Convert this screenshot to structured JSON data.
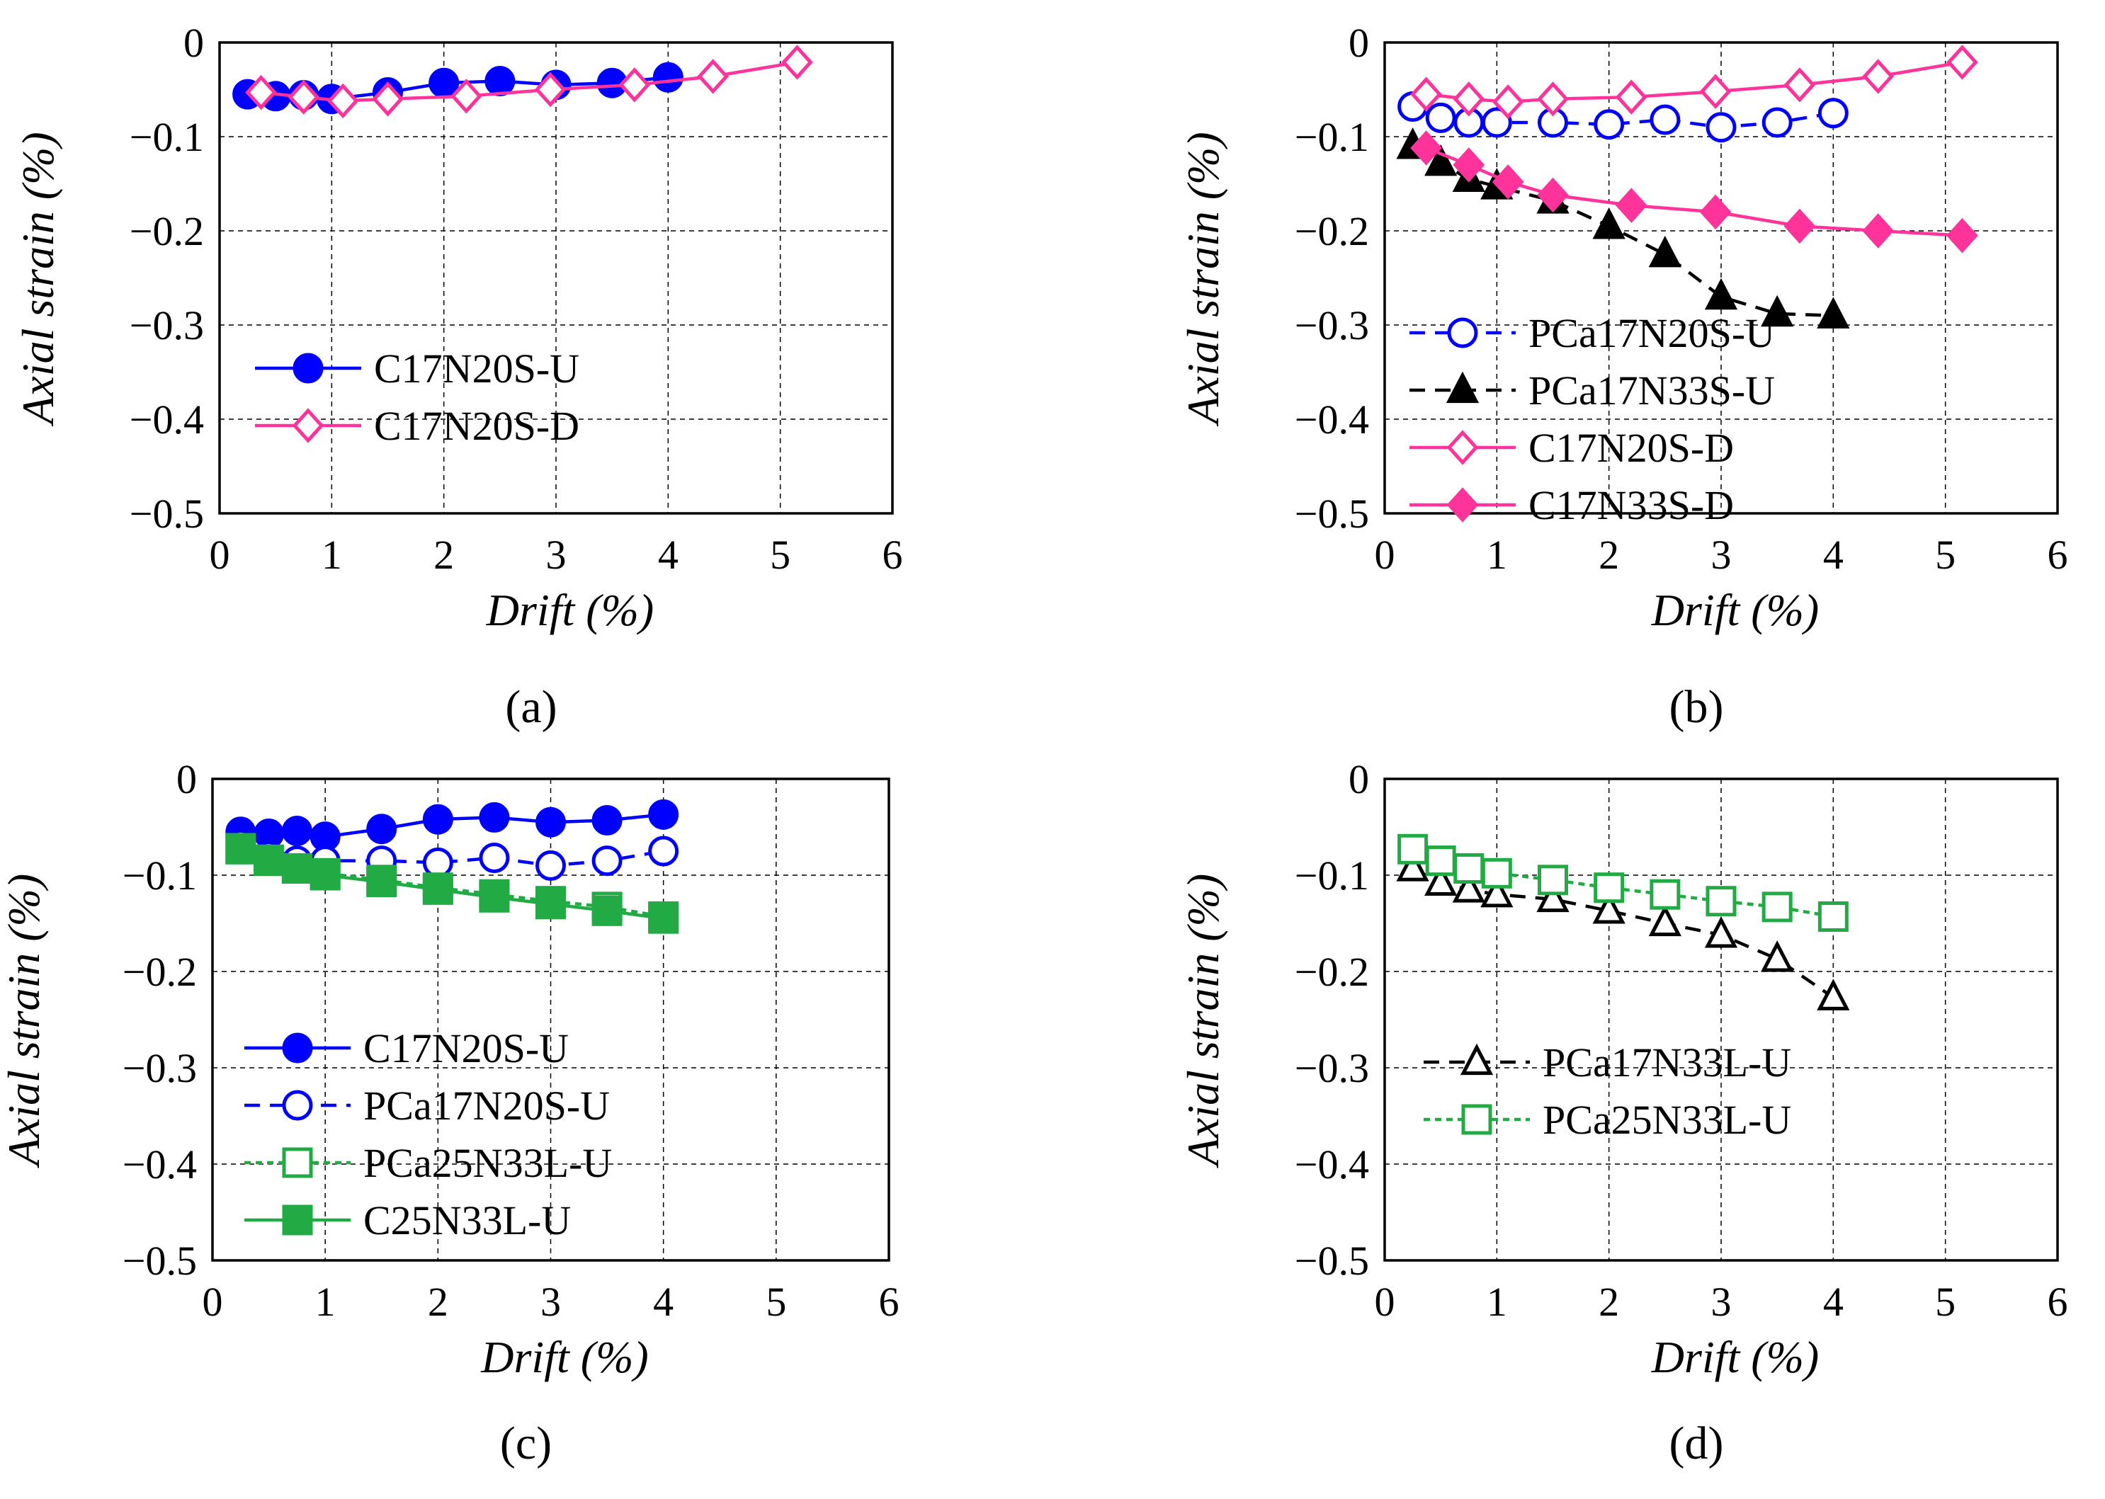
{
  "chart_data": [
    {
      "type": "line",
      "panel": "a",
      "label": "(a)",
      "xlabel": "Drift (%)",
      "ylabel": "Axial strain (%)",
      "xlim": [
        0,
        6
      ],
      "ylim": [
        -0.5,
        0
      ],
      "xticks": [
        "0",
        "1",
        "2",
        "3",
        "4",
        "5",
        "6"
      ],
      "yticks": [
        "0",
        "−0.1",
        "−0.2",
        "−0.3",
        "−0.4",
        "−0.5"
      ],
      "grid": true,
      "legend_position": "lower-left",
      "series": [
        {
          "name": "C17N20S-U",
          "color": "#0000ff",
          "dash": "solid",
          "marker": "circle",
          "filled": true,
          "x": [
            0.25,
            0.5,
            0.75,
            1.0,
            1.5,
            2.0,
            2.5,
            3.0,
            3.5,
            4.0
          ],
          "y": [
            -0.055,
            -0.057,
            -0.056,
            -0.06,
            -0.053,
            -0.043,
            -0.041,
            -0.045,
            -0.043,
            -0.037
          ]
        },
        {
          "name": "C17N20S-D",
          "color": "#ff3399",
          "dash": "solid",
          "marker": "diamond",
          "filled": false,
          "x": [
            0.37,
            0.75,
            1.1,
            1.5,
            2.2,
            2.95,
            3.7,
            4.4,
            5.15
          ],
          "y": [
            -0.053,
            -0.058,
            -0.062,
            -0.06,
            -0.057,
            -0.05,
            -0.045,
            -0.036,
            -0.021
          ]
        }
      ]
    },
    {
      "type": "line",
      "panel": "b",
      "label": "(b)",
      "xlabel": "Drift (%)",
      "ylabel": "Axial strain (%)",
      "xlim": [
        0,
        6
      ],
      "ylim": [
        -0.5,
        0
      ],
      "xticks": [
        "0",
        "1",
        "2",
        "3",
        "4",
        "5",
        "6"
      ],
      "yticks": [
        "0",
        "−0.1",
        "−0.2",
        "−0.3",
        "−0.4",
        "−0.5"
      ],
      "grid": true,
      "legend_position": "lower-left",
      "series": [
        {
          "name": "PCa17N20S-U",
          "color": "#0000ff",
          "dash": "dashed",
          "marker": "circle",
          "filled": false,
          "x": [
            0.25,
            0.5,
            0.75,
            1.0,
            1.5,
            2.0,
            2.5,
            3.0,
            3.5,
            4.0
          ],
          "y": [
            -0.068,
            -0.08,
            -0.085,
            -0.085,
            -0.085,
            -0.087,
            -0.082,
            -0.09,
            -0.085,
            -0.075
          ]
        },
        {
          "name": "PCa17N33S-U",
          "color": "#000000",
          "dash": "dashed",
          "marker": "triangle",
          "filled": true,
          "x": [
            0.25,
            0.5,
            0.75,
            1.0,
            1.5,
            2.0,
            2.5,
            3.0,
            3.5,
            4.0
          ],
          "y": [
            -0.11,
            -0.128,
            -0.145,
            -0.153,
            -0.168,
            -0.195,
            -0.225,
            -0.27,
            -0.288,
            -0.29
          ]
        },
        {
          "name": "C17N20S-D",
          "color": "#ff3399",
          "dash": "solid",
          "marker": "diamond",
          "filled": false,
          "x": [
            0.37,
            0.75,
            1.1,
            1.5,
            2.2,
            2.95,
            3.7,
            4.4,
            5.15
          ],
          "y": [
            -0.055,
            -0.06,
            -0.063,
            -0.06,
            -0.058,
            -0.052,
            -0.045,
            -0.036,
            -0.021
          ]
        },
        {
          "name": "C17N33S-D",
          "color": "#ff3399",
          "dash": "solid",
          "marker": "diamond",
          "filled": true,
          "x": [
            0.37,
            0.75,
            1.1,
            1.5,
            2.2,
            2.95,
            3.7,
            4.4,
            5.15
          ],
          "y": [
            -0.112,
            -0.13,
            -0.148,
            -0.162,
            -0.173,
            -0.18,
            -0.195,
            -0.2,
            -0.205
          ]
        }
      ]
    },
    {
      "type": "line",
      "panel": "c",
      "label": "(c)",
      "xlabel": "Drift (%)",
      "ylabel": "Axial strain (%)",
      "xlim": [
        0,
        6
      ],
      "ylim": [
        -0.5,
        0
      ],
      "xticks": [
        "0",
        "1",
        "2",
        "3",
        "4",
        "5",
        "6"
      ],
      "yticks": [
        "0",
        "−0.1",
        "−0.2",
        "−0.3",
        "−0.4",
        "−0.5"
      ],
      "grid": true,
      "legend_position": "lower-left",
      "series": [
        {
          "name": "C17N20S-U",
          "color": "#0000ff",
          "dash": "solid",
          "marker": "circle",
          "filled": true,
          "x": [
            0.25,
            0.5,
            0.75,
            1.0,
            1.5,
            2.0,
            2.5,
            3.0,
            3.5,
            4.0
          ],
          "y": [
            -0.055,
            -0.057,
            -0.054,
            -0.06,
            -0.052,
            -0.042,
            -0.04,
            -0.045,
            -0.043,
            -0.037
          ]
        },
        {
          "name": "PCa17N20S-U",
          "color": "#0000ff",
          "dash": "dashed",
          "marker": "circle",
          "filled": false,
          "x": [
            0.25,
            0.5,
            0.75,
            1.0,
            1.5,
            2.0,
            2.5,
            3.0,
            3.5,
            4.0
          ],
          "y": [
            -0.068,
            -0.08,
            -0.085,
            -0.085,
            -0.085,
            -0.087,
            -0.082,
            -0.09,
            -0.085,
            -0.075
          ]
        },
        {
          "name": "PCa25N33L-U",
          "color": "#22aa44",
          "dash": "dotted",
          "marker": "square",
          "filled": false,
          "x": [
            0.25,
            0.5,
            0.75,
            1.0,
            1.5,
            2.0,
            2.5,
            3.0,
            3.5,
            4.0
          ],
          "y": [
            -0.073,
            -0.085,
            -0.093,
            -0.098,
            -0.105,
            -0.113,
            -0.12,
            -0.127,
            -0.133,
            -0.143
          ]
        },
        {
          "name": "C25N33L-U",
          "color": "#22aa44",
          "dash": "solid",
          "marker": "square",
          "filled": true,
          "x": [
            0.25,
            0.5,
            0.75,
            1.0,
            1.5,
            2.0,
            2.5,
            3.0,
            3.5,
            4.0
          ],
          "y": [
            -0.072,
            -0.084,
            -0.093,
            -0.1,
            -0.107,
            -0.115,
            -0.123,
            -0.13,
            -0.137,
            -0.145
          ]
        }
      ]
    },
    {
      "type": "line",
      "panel": "d",
      "label": "(d)",
      "xlabel": "Drift (%)",
      "ylabel": "Axial strain (%)",
      "xlim": [
        0,
        6
      ],
      "ylim": [
        -0.5,
        0
      ],
      "xticks": [
        "0",
        "1",
        "2",
        "3",
        "4",
        "5",
        "6"
      ],
      "yticks": [
        "0",
        "−0.1",
        "−0.2",
        "−0.3",
        "−0.4",
        "−0.5"
      ],
      "grid": true,
      "legend_position": "lower-left",
      "series": [
        {
          "name": "PCa17N33L-U",
          "color": "#000000",
          "dash": "dashed",
          "marker": "triangle",
          "filled": false,
          "x": [
            0.25,
            0.5,
            0.75,
            1.0,
            1.5,
            2.0,
            2.5,
            3.0,
            3.5,
            4.0
          ],
          "y": [
            -0.093,
            -0.108,
            -0.115,
            -0.12,
            -0.125,
            -0.137,
            -0.15,
            -0.162,
            -0.187,
            -0.227
          ]
        },
        {
          "name": "PCa25N33L-U",
          "color": "#22aa44",
          "dash": "dotted",
          "marker": "square",
          "filled": false,
          "x": [
            0.25,
            0.5,
            0.75,
            1.0,
            1.5,
            2.0,
            2.5,
            3.0,
            3.5,
            4.0
          ],
          "y": [
            -0.073,
            -0.085,
            -0.093,
            -0.098,
            -0.105,
            -0.113,
            -0.12,
            -0.127,
            -0.133,
            -0.143
          ]
        }
      ]
    }
  ]
}
